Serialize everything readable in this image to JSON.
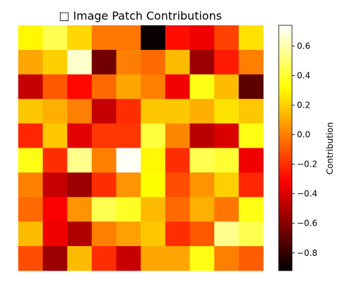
{
  "chart_data": {
    "type": "heatmap",
    "title": "□ Image Patch Contributions",
    "colormap": "hot",
    "rows": 10,
    "cols": 10,
    "values": [
      [
        0.3,
        0.45,
        0.22,
        -0.02,
        -0.02,
        -0.9,
        -0.28,
        -0.35,
        -0.15,
        0.25
      ],
      [
        0.1,
        0.2,
        0.65,
        -0.65,
        0.0,
        -0.05,
        0.15,
        -0.55,
        -0.25,
        0.0
      ],
      [
        -0.45,
        -0.1,
        -0.3,
        -0.05,
        0.1,
        0.0,
        -0.35,
        0.35,
        0.15,
        -0.7
      ],
      [
        0.18,
        0.12,
        0.0,
        -0.45,
        -0.2,
        0.18,
        0.18,
        0.12,
        0.25,
        0.18
      ],
      [
        -0.22,
        0.18,
        -0.38,
        -0.18,
        -0.18,
        0.42,
        0.02,
        -0.48,
        -0.4,
        0.35
      ],
      [
        0.35,
        -0.2,
        0.55,
        0.0,
        0.72,
        0.3,
        -0.2,
        0.45,
        0.4,
        -0.35
      ],
      [
        0.0,
        -0.45,
        -0.55,
        -0.2,
        0.05,
        0.32,
        -0.12,
        0.05,
        0.2,
        -0.22
      ],
      [
        -0.05,
        -0.32,
        0.05,
        0.45,
        0.38,
        0.15,
        -0.05,
        0.12,
        -0.02,
        0.35
      ],
      [
        0.15,
        -0.35,
        -0.5,
        0.0,
        0.08,
        0.18,
        -0.2,
        -0.1,
        0.55,
        0.45
      ],
      [
        -0.12,
        -0.55,
        0.15,
        -0.2,
        -0.45,
        0.1,
        0.1,
        0.35,
        0.0,
        -0.08
      ]
    ],
    "vmin": -0.92,
    "vmax": 0.74,
    "colorbar": {
      "label": "Contribution",
      "ticks": [
        -0.8,
        -0.6,
        -0.4,
        -0.2,
        0.0,
        0.2,
        0.4,
        0.6
      ],
      "tick_labels": [
        "−0.8",
        "−0.6",
        "−0.4",
        "−0.2",
        "0.0",
        "0.2",
        "0.4",
        "0.6"
      ]
    },
    "xticks": "none",
    "yticks": "none"
  }
}
